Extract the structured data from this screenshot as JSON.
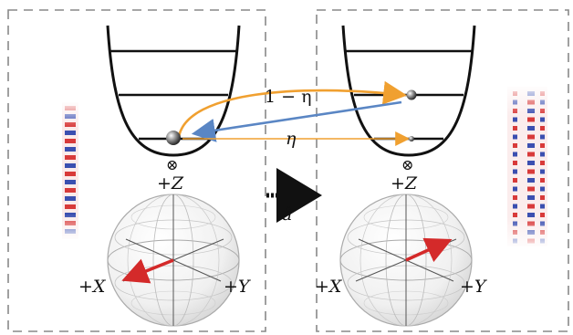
{
  "labels": {
    "left_bloch": {
      "z": "+Z",
      "x": "+X",
      "y": "+Y"
    },
    "right_bloch": {
      "z": "+Z",
      "x": "+X",
      "y": "+Y"
    },
    "operator": "â",
    "upper_arrow": "1 − η",
    "lower_arrow": "η",
    "tensor_symbol": "⊗"
  },
  "colors": {
    "orange_arrow": "#f0a030",
    "blue_arrow": "#5a86c4",
    "red_vector": "#d42a2a",
    "dashed_frame": "#888888"
  }
}
